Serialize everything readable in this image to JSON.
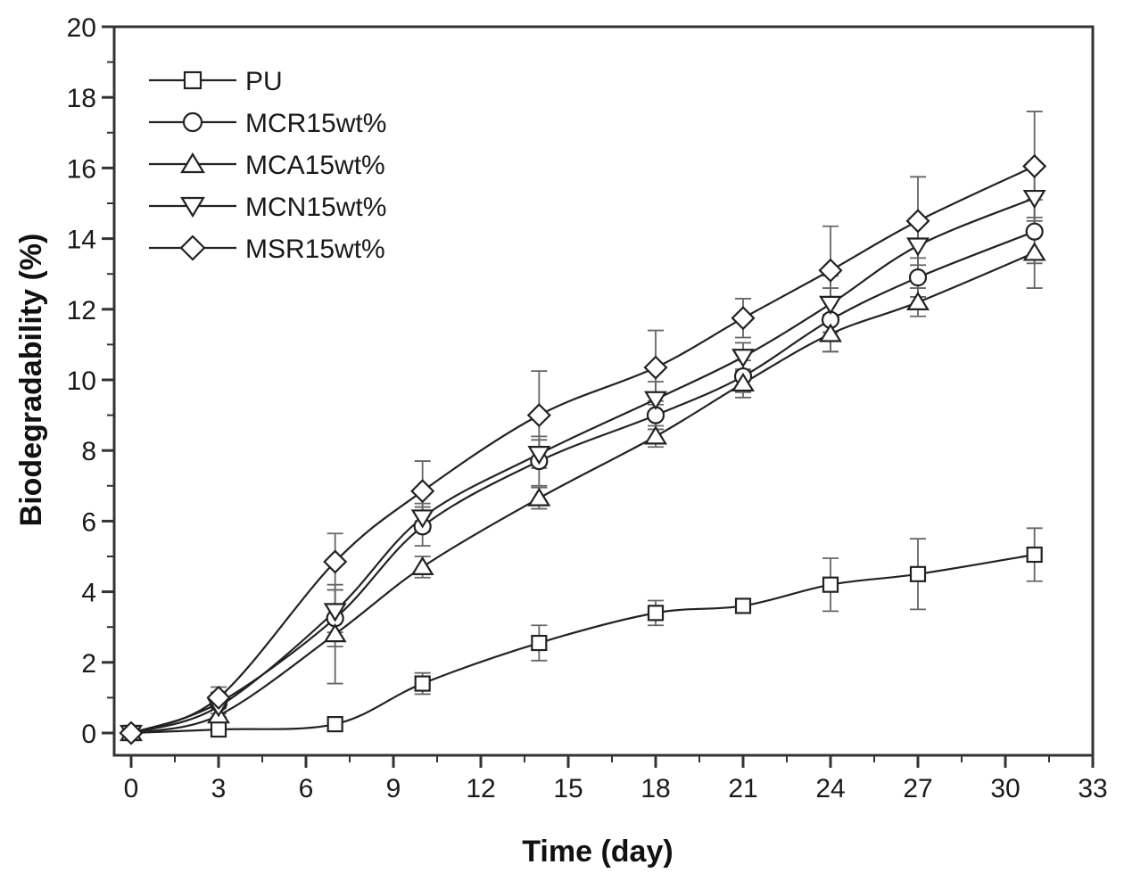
{
  "chart_data": {
    "type": "line",
    "title": "",
    "xlabel": "Time (day)",
    "ylabel": "Biodegradability (%)",
    "xlim": [
      0,
      33
    ],
    "ylim": [
      0,
      20
    ],
    "xticks": [
      0,
      3,
      6,
      9,
      12,
      15,
      18,
      21,
      24,
      27,
      30,
      33
    ],
    "yticks": [
      0,
      2,
      4,
      6,
      8,
      10,
      12,
      14,
      16,
      18,
      20
    ],
    "grid": false,
    "legend_position": "top-left",
    "x": [
      0,
      3,
      7,
      10,
      14,
      18,
      21,
      24,
      27,
      31
    ],
    "series": [
      {
        "name": "PU",
        "marker": "square",
        "values": [
          0,
          0.1,
          0.25,
          1.4,
          2.55,
          3.4,
          3.6,
          4.2,
          4.5,
          5.05
        ],
        "errors": [
          0,
          0.1,
          0.1,
          0.3,
          0.5,
          0.35,
          0.1,
          0.75,
          1.0,
          0.75
        ]
      },
      {
        "name": "MCR15wt%",
        "marker": "circle",
        "values": [
          0,
          0.85,
          3.25,
          5.85,
          7.7,
          9.0,
          10.1,
          11.7,
          12.9,
          14.2
        ],
        "errors": [
          0,
          0.3,
          0.8,
          0.55,
          0.7,
          0.4,
          0.45,
          0.9,
          0.55,
          0.9
        ]
      },
      {
        "name": "MCA15wt%",
        "marker": "triangle-up",
        "values": [
          0,
          0.5,
          2.8,
          4.7,
          6.65,
          8.4,
          9.9,
          11.3,
          12.2,
          13.6
        ],
        "errors": [
          0,
          0.3,
          1.4,
          0.3,
          0.3,
          0.3,
          0.4,
          0.5,
          0.4,
          1.0
        ]
      },
      {
        "name": "MCN15wt%",
        "marker": "triangle-down",
        "values": [
          0,
          0.75,
          3.45,
          6.1,
          7.9,
          9.45,
          10.65,
          12.15,
          13.8,
          15.15
        ],
        "errors": [
          0,
          0.3,
          0.6,
          0.4,
          0.4,
          0.5,
          0.4,
          0.8,
          0.8,
          0.9
        ]
      },
      {
        "name": "MSR15wt%",
        "marker": "diamond",
        "values": [
          0,
          1.0,
          4.85,
          6.85,
          9.0,
          10.35,
          11.75,
          13.1,
          14.5,
          16.05
        ],
        "errors": [
          0,
          0.3,
          0.8,
          0.85,
          1.25,
          1.05,
          0.55,
          1.25,
          1.25,
          1.55
        ]
      }
    ]
  }
}
